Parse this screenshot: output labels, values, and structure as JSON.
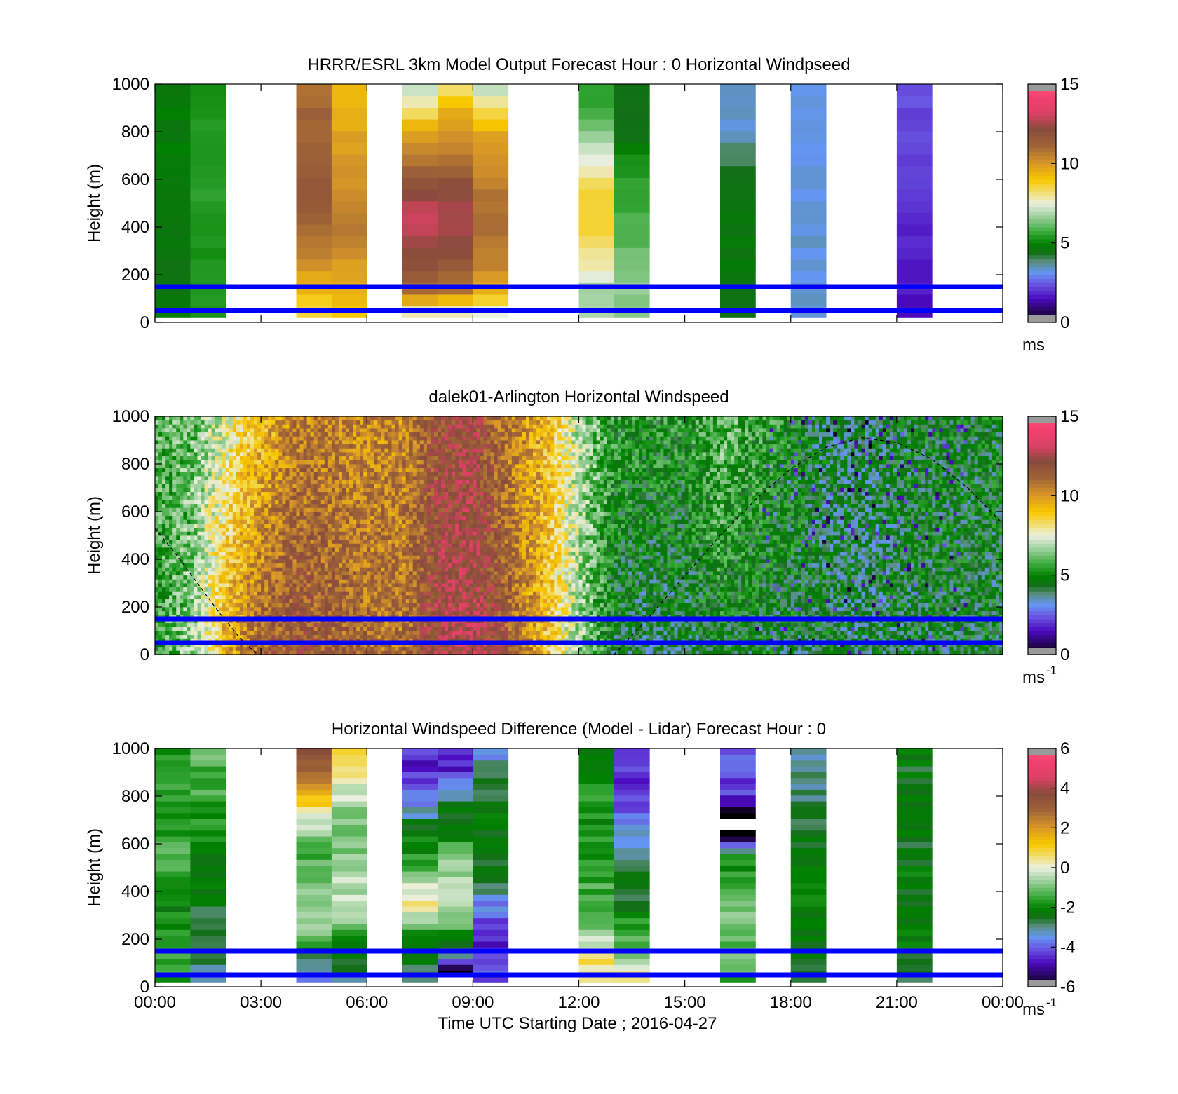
{
  "figure": {
    "xlabel": "Time UTC  Starting Date ; 2016-04-27",
    "x_tick_labels": [
      "00:00",
      "03:00",
      "06:00",
      "09:00",
      "12:00",
      "15:00",
      "18:00",
      "21:00",
      "00:00"
    ],
    "reference_line_heights_m": [
      150,
      50
    ],
    "reference_line_color": "#0000ff"
  },
  "chart_data": [
    {
      "type": "heatmap",
      "title": "HRRR/ESRL 3km Model Output   Forecast Hour : 0 Horizontal Windpseed",
      "ylabel": "Height (m)",
      "ylim": [
        0,
        1000
      ],
      "y_ticks": [
        0,
        200,
        400,
        600,
        800,
        1000
      ],
      "xlim_hours": [
        0,
        24
      ],
      "colorbar": {
        "range": [
          0,
          15
        ],
        "ticks": [
          0,
          5,
          10,
          15
        ],
        "unit": "ms",
        "unit_superscript": ""
      },
      "z_unit": "m s-1",
      "columns": [
        {
          "hour": 0.5,
          "speeds": [
            5.0,
            4.6,
            4.6,
            4.7,
            4.7,
            4.8,
            4.9,
            4.8,
            4.8,
            4.7
          ]
        },
        {
          "hour": 1.5,
          "speeds": [
            5.4,
            5.3,
            5.3,
            5.4,
            5.4,
            5.4,
            5.4,
            5.4,
            5.3,
            5.3
          ]
        },
        {
          "hour": 4.5,
          "speeds": [
            8.5,
            9.2,
            10.2,
            10.8,
            11.5,
            11.5,
            11.3,
            11.0,
            11.2,
            10.5
          ]
        },
        {
          "hour": 5.5,
          "speeds": [
            9.0,
            9.5,
            10.0,
            10.6,
            10.4,
            10.2,
            10.0,
            9.8,
            9.5,
            9.2
          ]
        },
        {
          "hour": 7.5,
          "speeds": [
            7.0,
            10.8,
            11.8,
            12.6,
            13.0,
            12.0,
            10.6,
            10.0,
            8.3,
            6.8
          ]
        },
        {
          "hour": 8.5,
          "speeds": [
            7.0,
            10.6,
            11.5,
            12.4,
            12.5,
            12.0,
            11.0,
            10.2,
            9.5,
            8.0
          ]
        },
        {
          "hour": 9.5,
          "speeds": [
            7.0,
            9.5,
            10.3,
            10.8,
            11.0,
            10.6,
            10.2,
            9.8,
            8.5,
            6.8
          ]
        },
        {
          "hour": 12.5,
          "speeds": [
            7.0,
            6.5,
            7.8,
            8.5,
            8.8,
            8.5,
            7.5,
            6.5,
            5.6,
            5.3
          ]
        },
        {
          "hour": 13.5,
          "speeds": [
            6.5,
            6.5,
            6.4,
            6.0,
            5.7,
            5.5,
            5.2,
            4.6,
            4.4,
            4.3
          ]
        },
        {
          "hour": 16.5,
          "speeds": [
            4.5,
            4.5,
            4.6,
            4.6,
            4.6,
            4.6,
            4.2,
            3.5,
            3.3,
            3.4
          ]
        },
        {
          "hour": 18.5,
          "speeds": [
            3.3,
            3.3,
            3.3,
            3.3,
            3.3,
            3.3,
            3.2,
            3.2,
            3.2,
            3.2
          ]
        },
        {
          "hour": 21.5,
          "speeds": [
            1.5,
            1.6,
            1.7,
            1.8,
            1.9,
            2.0,
            2.1,
            2.2,
            2.3,
            2.4
          ]
        }
      ]
    },
    {
      "type": "heatmap",
      "title": "dalek01-Arlington  Horizontal Windspeed",
      "ylabel": "Height (m)",
      "ylim": [
        0,
        1000
      ],
      "y_ticks": [
        0,
        200,
        400,
        600,
        800,
        1000
      ],
      "xlim_hours": [
        0,
        24
      ],
      "colorbar": {
        "range": [
          0,
          15
        ],
        "ticks": [
          0,
          5,
          10,
          15
        ],
        "unit": "ms",
        "unit_superscript": "-1"
      },
      "z_unit": "m s-1",
      "regime_hours": [
        0,
        1,
        2,
        3,
        4,
        5,
        6,
        7,
        8,
        9,
        10,
        11,
        12,
        13,
        14,
        15,
        16,
        17,
        18,
        19,
        20,
        21,
        22,
        23,
        24
      ],
      "regime_low_ms": [
        5.2,
        6.5,
        9.5,
        11.2,
        11.8,
        11.5,
        11.0,
        10.8,
        12.5,
        12.8,
        11.5,
        9.2,
        6.8,
        4.5,
        4.0,
        4.2,
        4.6,
        4.4,
        4.4,
        4.6,
        4.2,
        4.4,
        4.5,
        4.5,
        4.5
      ],
      "regime_high_ms": [
        5.8,
        6.0,
        7.5,
        9.2,
        10.5,
        10.5,
        10.2,
        10.3,
        11.8,
        12.2,
        10.5,
        9.5,
        7.0,
        5.3,
        5.2,
        5.2,
        6.2,
        5.5,
        5.0,
        4.0,
        4.0,
        4.5,
        4.6,
        4.5,
        4.6
      ],
      "dashed_curve_note": "",
      "dashed_curve": {
        "hours": [
          0,
          0.6,
          1.2,
          1.8,
          2.4,
          2.9
        ],
        "height_m": [
          530,
          420,
          300,
          180,
          70,
          0
        ]
      },
      "dashed_curve_2": {
        "hours": [
          13.0,
          14.0,
          15.0,
          16.0,
          17.0,
          18.0,
          19.0,
          20.0,
          21.0,
          22.0,
          23.0,
          24.0
        ],
        "height_m": [
          0,
          160,
          330,
          500,
          650,
          780,
          870,
          910,
          890,
          820,
          700,
          550
        ]
      }
    },
    {
      "type": "heatmap",
      "title": "Horizontal Windspeed Difference (Model - Lidar) Forecast Hour : 0",
      "ylabel": "Height (m)",
      "ylim": [
        0,
        1000
      ],
      "y_ticks": [
        0,
        200,
        400,
        600,
        800,
        1000
      ],
      "xlim_hours": [
        0,
        24
      ],
      "colorbar": {
        "range": [
          -6,
          6
        ],
        "ticks": [
          -6,
          -4,
          -2,
          0,
          2,
          4,
          6
        ],
        "unit": "ms",
        "unit_superscript": "-1"
      },
      "z_unit": "m s-1",
      "columns": [
        {
          "hour": 0.5,
          "diffs": [
            -1.5,
            -1.7,
            -1.8,
            -2.0,
            -1.6,
            -1.4,
            -1.6,
            -1.7,
            -1.5,
            -1.8
          ]
        },
        {
          "hour": 1.5,
          "diffs": [
            -2.8,
            -2.8,
            -2.6,
            -2.5,
            -2.4,
            -2.2,
            -1.8,
            -1.5,
            -1.4,
            -1.2
          ]
        },
        {
          "hour": 4.5,
          "diffs": [
            -3.5,
            -2.5,
            -0.5,
            -0.6,
            -1.2,
            -1.4,
            -0.5,
            1.2,
            2.5,
            4.2
          ]
        },
        {
          "hour": 5.5,
          "diffs": [
            -2.8,
            -2.6,
            -1.4,
            -0.3,
            -0.5,
            -1.0,
            -0.8,
            -0.5,
            0.3,
            1.0
          ]
        },
        {
          "hour": 7.5,
          "diffs": [
            -2.6,
            -2.4,
            -1.5,
            0.6,
            -0.8,
            -1.8,
            -2.4,
            -3.8,
            -4.5,
            -4.5
          ]
        },
        {
          "hour": 8.5,
          "diffs": [
            -9.0,
            -2.8,
            -1.5,
            -0.6,
            -0.4,
            -1.2,
            -2.4,
            -2.6,
            -4.5,
            -4.8
          ]
        },
        {
          "hour": 9.5,
          "diffs": [
            -4.0,
            -4.5,
            -4.8,
            -3.5,
            -2.5,
            -2.4,
            -2.2,
            -2.5,
            -2.6,
            -3.8
          ]
        },
        {
          "hour": 12.5,
          "diffs": [
            0.8,
            0.4,
            -0.8,
            -1.2,
            -1.6,
            -1.8,
            -1.9,
            -1.8,
            -2.0,
            -2.0
          ]
        },
        {
          "hour": 13.5,
          "diffs": [
            1.0,
            -0.8,
            -1.5,
            -2.4,
            -2.5,
            -2.8,
            -3.8,
            -4.2,
            -4.5,
            -4.5
          ]
        },
        {
          "hour": 16.5,
          "diffs": [
            -1.5,
            -1.2,
            -1.0,
            -1.0,
            -1.6,
            -2.2,
            -9.0,
            -4.5,
            -4.2,
            -3.8
          ]
        },
        {
          "hour": 18.5,
          "diffs": [
            -2.4,
            -2.2,
            -2.0,
            -2.2,
            -2.4,
            -2.5,
            -2.6,
            -2.8,
            -3.0,
            -3.0
          ]
        },
        {
          "hour": 21.5,
          "diffs": [
            -2.6,
            -2.4,
            -2.2,
            -2.2,
            -2.2,
            -2.3,
            -2.4,
            -2.4,
            -2.4,
            -2.3
          ]
        }
      ]
    }
  ]
}
